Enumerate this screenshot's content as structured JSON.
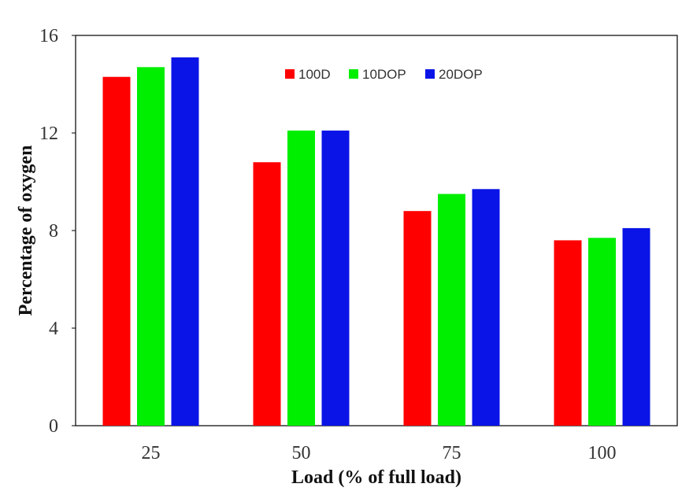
{
  "chart_data": {
    "type": "bar",
    "title": "",
    "xlabel": "Load (% of full load)",
    "ylabel": "Percentage of oxygen",
    "categories": [
      "25",
      "50",
      "75",
      "100"
    ],
    "ylim": [
      0,
      16
    ],
    "yticks": [
      "0",
      "4",
      "8",
      "12",
      "16"
    ],
    "grid": false,
    "legend_position": "top-center",
    "series": [
      {
        "name": "100D",
        "color": "#ff0000",
        "values": [
          14.3,
          10.8,
          8.8,
          7.6
        ]
      },
      {
        "name": "10DOP",
        "color": "#00ee00",
        "values": [
          14.7,
          12.1,
          9.5,
          7.7
        ]
      },
      {
        "name": "20DOP",
        "color": "#0a14e6",
        "values": [
          15.1,
          12.1,
          9.7,
          8.1
        ]
      }
    ]
  }
}
